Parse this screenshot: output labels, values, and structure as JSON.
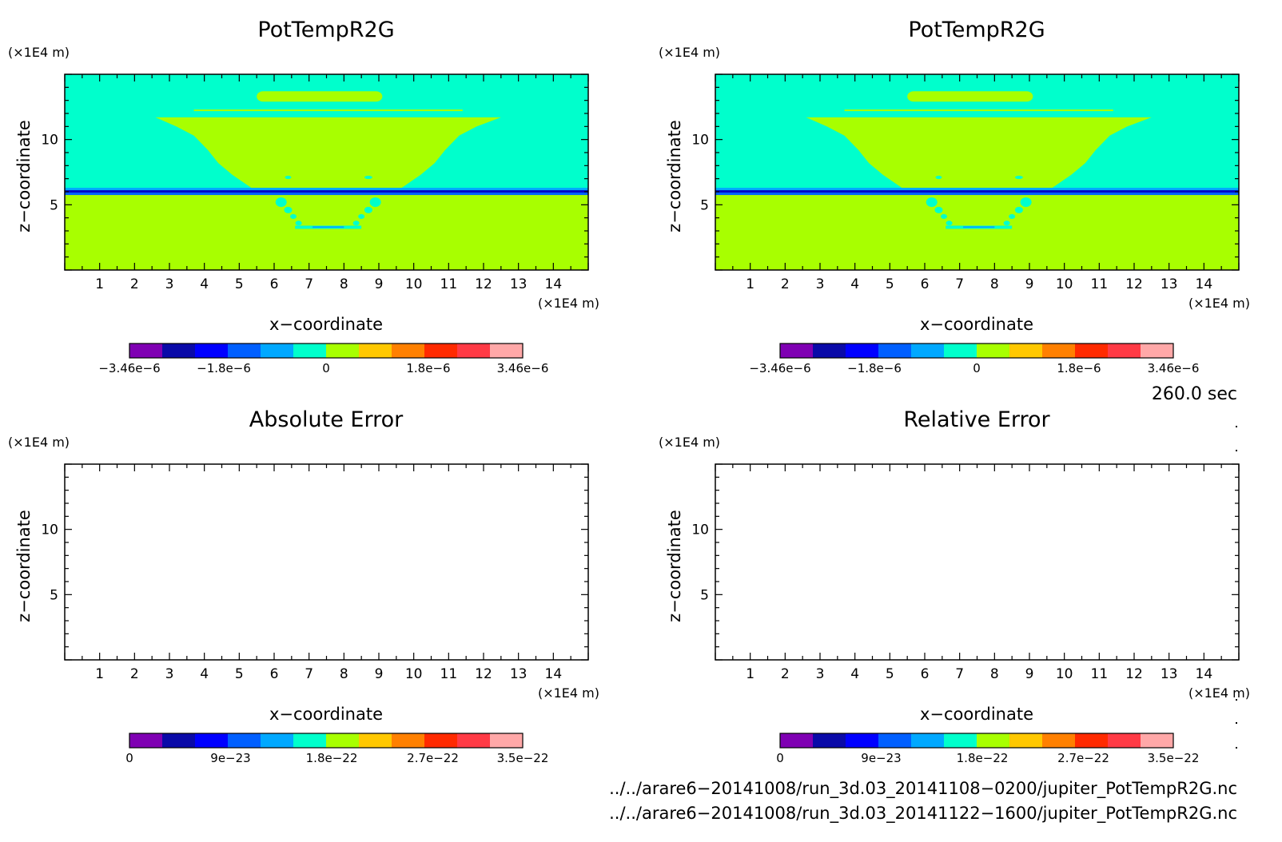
{
  "chart_data": [
    {
      "type": "heatmap",
      "title": "PotTempR2G",
      "xlabel": "x−coordinate",
      "ylabel": "z−coordinate",
      "x_unit": "(×1E4 m)",
      "y_unit": "(×1E4 m)",
      "xlim": [
        0.0,
        15.0
      ],
      "ylim": [
        0.0,
        15.0
      ],
      "x_ticks": [
        "1",
        "2",
        "3",
        "4",
        "5",
        "6",
        "7",
        "8",
        "9",
        "10",
        "11",
        "12",
        "13",
        "14"
      ],
      "y_ticks": [
        "5",
        "10"
      ],
      "colorbar": {
        "colors": [
          "#7f00b3",
          "#0a0aa8",
          "#0000ff",
          "#005fff",
          "#00a8ff",
          "#00ffcc",
          "#a8ff00",
          "#ffc800",
          "#ff8000",
          "#ff2a00",
          "#ff3a45",
          "#ffa8a8"
        ],
        "tick_labels": [
          "−3.46e−6",
          "−1.8e−6",
          "0",
          "1.8e−6",
          "3.46e−6"
        ],
        "tick_values": [
          -3.46e-06,
          -1.8e-06,
          0,
          1.8e-06,
          3.46e-06
        ],
        "range": [
          -3.46e-06,
          3.46e-06
        ]
      },
      "field": {
        "background": "#00ffcc",
        "lower_layer": "#a8ff00",
        "band_dark": "#0000c8",
        "band_mid": "#0060ff",
        "band_light": "#00a8ff",
        "plume": "#a8ff00",
        "cap": "#a8ff00",
        "lower_features": "#00ffcc"
      }
    },
    {
      "type": "heatmap",
      "title": "PotTempR2G",
      "xlabel": "x−coordinate",
      "ylabel": "z−coordinate",
      "x_unit": "(×1E4 m)",
      "y_unit": "(×1E4 m)",
      "xlim": [
        0.0,
        15.0
      ],
      "ylim": [
        0.0,
        15.0
      ],
      "x_ticks": [
        "1",
        "2",
        "3",
        "4",
        "5",
        "6",
        "7",
        "8",
        "9",
        "10",
        "11",
        "12",
        "13",
        "14"
      ],
      "y_ticks": [
        "5",
        "10"
      ],
      "colorbar": {
        "colors": [
          "#7f00b3",
          "#0a0aa8",
          "#0000ff",
          "#005fff",
          "#00a8ff",
          "#00ffcc",
          "#a8ff00",
          "#ffc800",
          "#ff8000",
          "#ff2a00",
          "#ff3a45",
          "#ffa8a8"
        ],
        "tick_labels": [
          "−3.46e−6",
          "−1.8e−6",
          "0",
          "1.8e−6",
          "3.46e−6"
        ],
        "tick_values": [
          -3.46e-06,
          -1.8e-06,
          0,
          1.8e-06,
          3.46e-06
        ],
        "range": [
          -3.46e-06,
          3.46e-06
        ]
      },
      "field": {
        "background": "#00ffcc",
        "lower_layer": "#a8ff00",
        "band_dark": "#0000c8",
        "band_mid": "#0060ff",
        "band_light": "#00a8ff",
        "plume": "#a8ff00",
        "cap": "#a8ff00",
        "lower_features": "#00ffcc"
      }
    },
    {
      "type": "heatmap",
      "title": "Absolute Error",
      "xlabel": "x−coordinate",
      "ylabel": "z−coordinate",
      "x_unit": "(×1E4 m)",
      "y_unit": "(×1E4 m)",
      "xlim": [
        0.0,
        15.0
      ],
      "ylim": [
        0.0,
        15.0
      ],
      "x_ticks": [
        "1",
        "2",
        "3",
        "4",
        "5",
        "6",
        "7",
        "8",
        "9",
        "10",
        "11",
        "12",
        "13",
        "14"
      ],
      "y_ticks": [
        "5",
        "10"
      ],
      "colorbar": {
        "colors": [
          "#7f00b3",
          "#0a0aa8",
          "#0000ff",
          "#005fff",
          "#00a8ff",
          "#00ffcc",
          "#a8ff00",
          "#ffc800",
          "#ff8000",
          "#ff2a00",
          "#ff3a45",
          "#ffa8a8"
        ],
        "tick_labels": [
          "0",
          "9e−23",
          "1.8e−22",
          "2.7e−22",
          "3.5e−22"
        ],
        "tick_values": [
          0,
          9e-23,
          1.8e-22,
          2.7e-22,
          3.5e-22
        ],
        "range": [
          0,
          3.5e-22
        ]
      },
      "field": null
    },
    {
      "type": "heatmap",
      "title": "Relative Error",
      "xlabel": "x−coordinate",
      "ylabel": "z−coordinate",
      "x_unit": "(×1E4 m)",
      "y_unit": "(×1E4 m)",
      "xlim": [
        0.0,
        15.0
      ],
      "ylim": [
        0.0,
        15.0
      ],
      "x_ticks": [
        "1",
        "2",
        "3",
        "4",
        "5",
        "6",
        "7",
        "8",
        "9",
        "10",
        "11",
        "12",
        "13",
        "14"
      ],
      "y_ticks": [
        "5",
        "10"
      ],
      "colorbar": {
        "colors": [
          "#7f00b3",
          "#0a0aa8",
          "#0000ff",
          "#005fff",
          "#00a8ff",
          "#00ffcc",
          "#a8ff00",
          "#ffc800",
          "#ff8000",
          "#ff2a00",
          "#ff3a45",
          "#ffa8a8"
        ],
        "tick_labels": [
          "0",
          "9e−23",
          "1.8e−22",
          "2.7e−22",
          "3.5e−22"
        ],
        "tick_values": [
          0,
          9e-23,
          1.8e-22,
          2.7e-22,
          3.5e-22
        ],
        "range": [
          0,
          3.5e-22
        ]
      },
      "field": null
    }
  ],
  "time_label": "260.0 sec",
  "file_paths": [
    "../../arare6−20141008/run_3d.03_20141108−0200/jupiter_PotTempR2G.nc",
    "../../arare6−20141008/run_3d.03_20141122−1600/jupiter_PotTempR2G.nc"
  ]
}
